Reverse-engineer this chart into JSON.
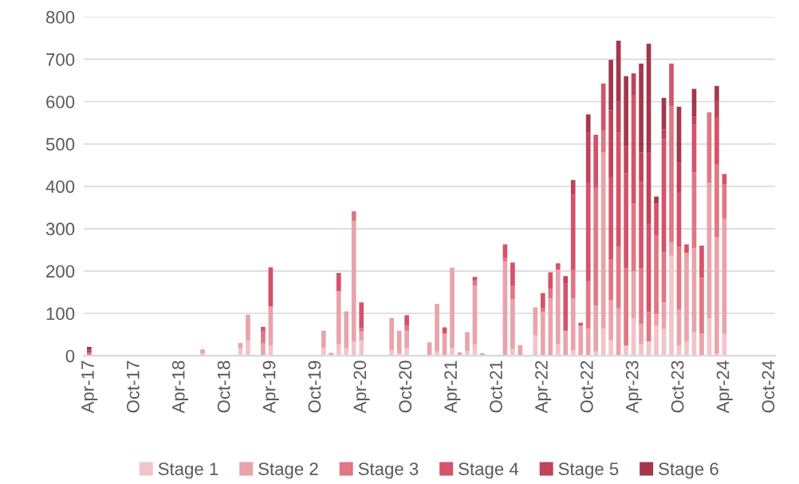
{
  "chart_data": {
    "type": "bar",
    "stacked": true,
    "categories": [
      "Apr-17",
      null,
      null,
      null,
      null,
      null,
      "Oct-17",
      null,
      null,
      null,
      null,
      null,
      "Apr-18",
      null,
      null,
      null,
      null,
      null,
      "Oct-18",
      null,
      null,
      null,
      null,
      null,
      "Apr-19",
      null,
      null,
      null,
      null,
      null,
      "Oct-19",
      null,
      null,
      null,
      null,
      null,
      "Apr-20",
      null,
      null,
      null,
      null,
      null,
      "Oct-20",
      null,
      null,
      null,
      null,
      null,
      "Apr-21",
      null,
      null,
      null,
      null,
      null,
      "Oct-21",
      null,
      null,
      null,
      null,
      null,
      "Apr-22",
      null,
      null,
      null,
      null,
      null,
      "Oct-22",
      null,
      null,
      null,
      null,
      null,
      "Apr-23",
      null,
      null,
      null,
      null,
      null,
      "Oct-23",
      null,
      null,
      null,
      null,
      null,
      "Apr-24",
      null,
      null,
      null,
      null,
      null,
      "Oct-24"
    ],
    "series": [
      {
        "name": "Stage 1",
        "color": "#f2c4ca",
        "values": [
          null,
          null,
          null,
          null,
          null,
          null,
          null,
          null,
          null,
          null,
          null,
          null,
          null,
          null,
          null,
          5,
          null,
          null,
          null,
          null,
          18,
          35,
          null,
          null,
          24,
          null,
          null,
          null,
          null,
          null,
          null,
          18,
          null,
          27,
          18,
          33,
          36,
          null,
          null,
          null,
          13,
          6,
          18,
          null,
          null,
          null,
          10,
          null,
          18,
          null,
          11,
          26,
          null,
          null,
          null,
          null,
          16,
          null,
          null,
          48,
          null,
          null,
          27,
          null,
          13,
          null,
          null,
          10,
          64,
          37,
          null,
          24,
          88,
          27,
          34,
          71,
          64,
          236,
          24,
          33,
          56,
          null,
          88,
          5,
          52,
          null,
          null,
          null,
          null,
          null,
          null
        ]
      },
      {
        "name": "Stage 2",
        "color": "#e9a3ab",
        "values": [
          null,
          null,
          null,
          null,
          null,
          null,
          null,
          null,
          null,
          null,
          null,
          null,
          null,
          null,
          null,
          10,
          null,
          null,
          null,
          null,
          12,
          62,
          null,
          29,
          92,
          null,
          null,
          null,
          null,
          null,
          null,
          41,
          7,
          126,
          87,
          285,
          21,
          null,
          null,
          null,
          76,
          53,
          41,
          null,
          null,
          32,
          112,
          52,
          190,
          8,
          45,
          139,
          6,
          null,
          null,
          222,
          118,
          25,
          null,
          66,
          103,
          136,
          176,
          59,
          123,
          71,
          64,
          109,
          416,
          94,
          112,
          null,
          112,
          48,
          null,
          28,
          62,
          32,
          85,
          210,
          198,
          52,
          321,
          276,
          272,
          null,
          null,
          null,
          null,
          null,
          null
        ]
      },
      {
        "name": "Stage 3",
        "color": "#e07784",
        "values": [
          8,
          null,
          null,
          null,
          null,
          null,
          null,
          null,
          null,
          null,
          null,
          null,
          null,
          null,
          null,
          null,
          null,
          null,
          null,
          null,
          null,
          null,
          null,
          28,
          null,
          null,
          null,
          null,
          null,
          null,
          null,
          null,
          null,
          null,
          null,
          23,
          9,
          null,
          null,
          null,
          null,
          null,
          13,
          null,
          null,
          null,
          null,
          null,
          null,
          null,
          null,
          12,
          null,
          null,
          null,
          10,
          31,
          null,
          null,
          null,
          9,
          22,
          null,
          null,
          66,
          null,
          112,
          277,
          53,
          97,
          146,
          183,
          159,
          131,
          69,
          185,
          118,
          322,
          148,
          null,
          179,
          132,
          166,
          171,
          80,
          null,
          null,
          null,
          null,
          null,
          null
        ]
      },
      {
        "name": "Stage 4",
        "color": "#d5526a",
        "values": [
          null,
          null,
          null,
          null,
          null,
          null,
          null,
          null,
          null,
          null,
          null,
          null,
          null,
          null,
          null,
          null,
          null,
          null,
          null,
          null,
          null,
          null,
          null,
          11,
          93,
          null,
          null,
          null,
          null,
          null,
          null,
          null,
          null,
          37,
          null,
          null,
          60,
          null,
          null,
          null,
          null,
          null,
          24,
          null,
          null,
          null,
          null,
          15,
          null,
          null,
          null,
          9,
          null,
          null,
          null,
          31,
          55,
          null,
          null,
          null,
          36,
          39,
          15,
          111,
          178,
          7,
          233,
          126,
          110,
          194,
          269,
          224,
          257,
          204,
          210,
          75,
          268,
          100,
          127,
          20,
          112,
          76,
          null,
          108,
          25,
          null,
          null,
          null,
          null,
          null,
          null
        ]
      },
      {
        "name": "Stage 5",
        "color": "#c0435a",
        "values": [
          6,
          null,
          null,
          null,
          null,
          null,
          null,
          null,
          null,
          null,
          null,
          null,
          null,
          null,
          null,
          null,
          null,
          null,
          null,
          null,
          null,
          null,
          null,
          null,
          null,
          null,
          null,
          null,
          null,
          null,
          null,
          null,
          null,
          5,
          null,
          null,
          null,
          null,
          null,
          null,
          null,
          null,
          null,
          null,
          null,
          null,
          null,
          null,
          null,
          null,
          null,
          null,
          null,
          null,
          null,
          null,
          null,
          null,
          null,
          null,
          null,
          null,
          null,
          18,
          35,
          null,
          117,
          null,
          null,
          157,
          73,
          64,
          51,
          70,
          166,
          null,
          22,
          null,
          71,
          null,
          19,
          null,
          null,
          43,
          null,
          null,
          null,
          null,
          null,
          null,
          null
        ]
      },
      {
        "name": "Stage 6",
        "color": "#a3384c",
        "values": [
          7,
          null,
          null,
          null,
          null,
          null,
          null,
          null,
          null,
          null,
          null,
          null,
          null,
          null,
          null,
          null,
          null,
          null,
          null,
          null,
          null,
          null,
          null,
          null,
          null,
          null,
          null,
          null,
          null,
          null,
          null,
          null,
          null,
          null,
          null,
          null,
          null,
          null,
          null,
          null,
          null,
          null,
          null,
          null,
          null,
          null,
          null,
          null,
          null,
          null,
          null,
          null,
          null,
          null,
          null,
          null,
          null,
          null,
          null,
          null,
          null,
          null,
          null,
          null,
          null,
          null,
          44,
          null,
          null,
          120,
          144,
          165,
          null,
          210,
          258,
          17,
          75,
          null,
          133,
          null,
          66,
          null,
          null,
          34,
          null,
          null,
          null,
          null,
          null,
          null,
          null
        ]
      }
    ],
    "ylim": [
      0,
      800
    ],
    "yticks": [
      0,
      100,
      200,
      300,
      400,
      500,
      600,
      700,
      800
    ],
    "grid": "y",
    "legend": "bottom"
  }
}
